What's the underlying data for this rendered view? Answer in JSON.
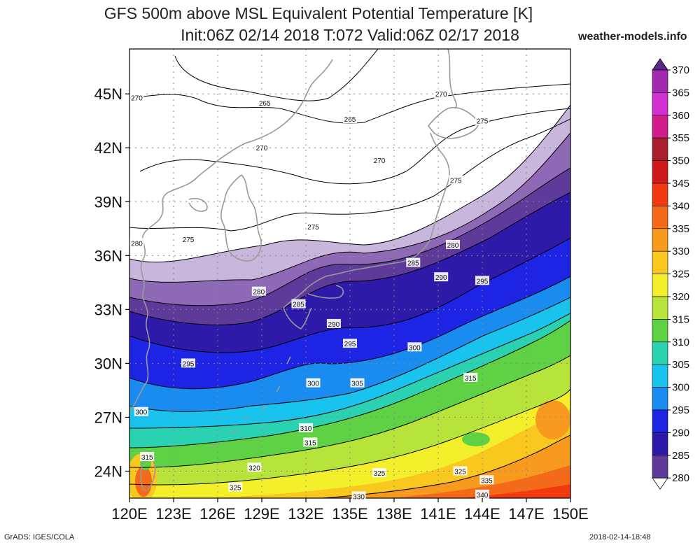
{
  "title_line1": "GFS 500m above MSL Equivalent Potential Temperature [K]",
  "title_line2": "Init:06Z 02/14 2018 T:072 Valid:06Z 02/17 2018",
  "watermark": "weather-models.info",
  "footer_left": "GrADS: IGES/COLA",
  "footer_right": "2018-02-14-18:48",
  "map": {
    "lat_range": [
      22.5,
      47.5
    ],
    "lon_range": [
      120,
      150
    ],
    "lat_ticks": [
      "24N",
      "27N",
      "30N",
      "33N",
      "36N",
      "39N",
      "42N",
      "45N"
    ],
    "lat_values": [
      24,
      27,
      30,
      33,
      36,
      39,
      42,
      45
    ],
    "lon_ticks": [
      "120E",
      "123E",
      "126E",
      "129E",
      "132E",
      "135E",
      "138E",
      "141E",
      "144E",
      "147E",
      "150E"
    ],
    "lon_values": [
      120,
      123,
      126,
      129,
      132,
      135,
      138,
      141,
      144,
      147,
      150
    ],
    "contour_labels": [
      {
        "text": "270",
        "lon": 120.5,
        "lat": 44.8
      },
      {
        "text": "265",
        "lon": 129.2,
        "lat": 44.5
      },
      {
        "text": "265",
        "lon": 135.0,
        "lat": 43.6
      },
      {
        "text": "270",
        "lon": 141.2,
        "lat": 45.0
      },
      {
        "text": "275",
        "lon": 144.0,
        "lat": 43.5
      },
      {
        "text": "270",
        "lon": 129.0,
        "lat": 42.0
      },
      {
        "text": "270",
        "lon": 137.0,
        "lat": 41.3
      },
      {
        "text": "275",
        "lon": 142.2,
        "lat": 40.2
      },
      {
        "text": "275",
        "lon": 132.5,
        "lat": 37.6
      },
      {
        "text": "275",
        "lon": 124.0,
        "lat": 36.9
      },
      {
        "text": "280",
        "lon": 120.5,
        "lat": 36.7
      },
      {
        "text": "280",
        "lon": 142.0,
        "lat": 36.6
      },
      {
        "text": "285",
        "lon": 139.3,
        "lat": 35.6
      },
      {
        "text": "290",
        "lon": 141.2,
        "lat": 34.8
      },
      {
        "text": "295",
        "lon": 144.0,
        "lat": 34.6
      },
      {
        "text": "280",
        "lon": 128.8,
        "lat": 34.0
      },
      {
        "text": "285",
        "lon": 131.5,
        "lat": 33.3
      },
      {
        "text": "290",
        "lon": 133.9,
        "lat": 32.2
      },
      {
        "text": "295",
        "lon": 135.0,
        "lat": 31.1
      },
      {
        "text": "300",
        "lon": 139.4,
        "lat": 30.9
      },
      {
        "text": "295",
        "lon": 124.0,
        "lat": 30.0
      },
      {
        "text": "300",
        "lon": 132.5,
        "lat": 28.9
      },
      {
        "text": "305",
        "lon": 135.5,
        "lat": 28.9
      },
      {
        "text": "315",
        "lon": 143.2,
        "lat": 29.2
      },
      {
        "text": "300",
        "lon": 120.8,
        "lat": 27.3
      },
      {
        "text": "310",
        "lon": 132.0,
        "lat": 26.4
      },
      {
        "text": "315",
        "lon": 132.3,
        "lat": 25.6
      },
      {
        "text": "315",
        "lon": 121.2,
        "lat": 24.8
      },
      {
        "text": "320",
        "lon": 128.5,
        "lat": 24.2
      },
      {
        "text": "325",
        "lon": 137.0,
        "lat": 23.9
      },
      {
        "text": "325",
        "lon": 142.5,
        "lat": 24.0
      },
      {
        "text": "335",
        "lon": 144.3,
        "lat": 23.5
      },
      {
        "text": "325",
        "lon": 127.2,
        "lat": 23.1
      },
      {
        "text": "330",
        "lon": 135.6,
        "lat": 22.6
      },
      {
        "text": "340",
        "lon": 144.0,
        "lat": 22.7
      }
    ]
  },
  "colorbar": {
    "labels": [
      "370",
      "365",
      "360",
      "355",
      "350",
      "345",
      "340",
      "335",
      "330",
      "325",
      "320",
      "315",
      "310",
      "305",
      "300",
      "295",
      "290",
      "285",
      "280"
    ],
    "colors": [
      "#5a2a86",
      "#a02ab0",
      "#d12fd0",
      "#d21c8c",
      "#a81e2c",
      "#d01a1a",
      "#f23a10",
      "#f46a1a",
      "#f89a1e",
      "#f8c81e",
      "#f3ef2a",
      "#b6e43a",
      "#5ed244",
      "#2ad2b2",
      "#18c4ee",
      "#1a8cf0",
      "#1e24e4",
      "#2e1aa8",
      "#5e3a9a",
      "#8e6ab6",
      "#c8b6dc"
    ]
  }
}
